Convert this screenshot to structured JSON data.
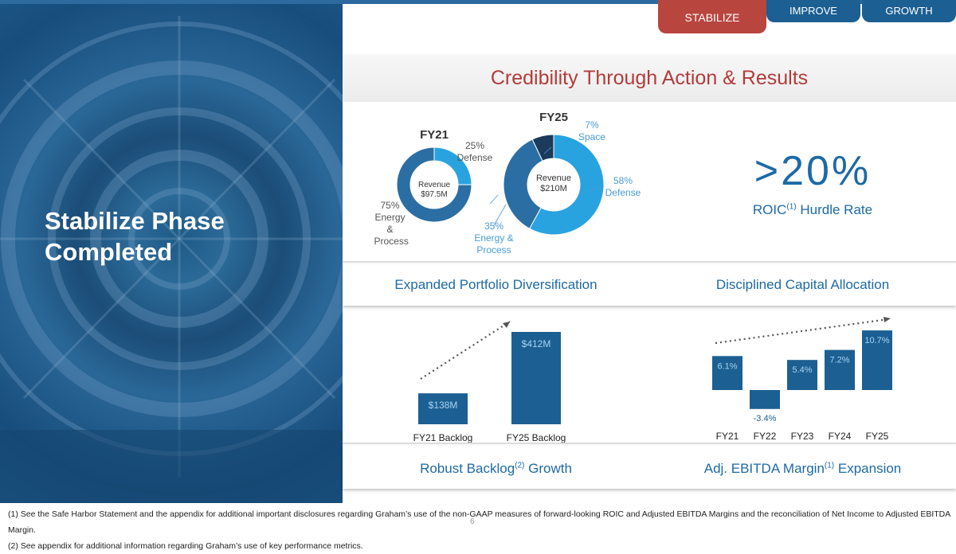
{
  "tabs": [
    {
      "label": "STABILIZE",
      "active": true
    },
    {
      "label": "IMPROVE",
      "active": false
    },
    {
      "label": "GROWTH",
      "active": false
    }
  ],
  "phase_title": "Stabilize Phase Completed",
  "main_title": "Credibility Through Action & Results",
  "colors": {
    "accent_red": "#b23c3c",
    "brand_blue": "#1d6aa5",
    "dark_blue": "#1c5f92",
    "light_blue": "#29a3e0",
    "navy": "#1b3a5c"
  },
  "roic": {
    "value": ">20%",
    "label": "ROIC",
    "sup": "(1)",
    "suffix": "Hurdle Rate"
  },
  "sections": {
    "portfolio": "Expanded Portfolio Diversification",
    "capital": "Disciplined Capital Allocation",
    "backlog": {
      "text": "Robust Backlog",
      "sup": "(2)",
      "suffix": "Growth"
    },
    "ebitda": {
      "text": "Adj. EBITDA Margin",
      "sup": "(1)",
      "suffix": "Expansion"
    }
  },
  "chart_data": [
    {
      "type": "pie",
      "title": "FY21",
      "center_label": [
        "Revenue",
        "$97.5M"
      ],
      "slices": [
        {
          "label": "Defense",
          "value": 25,
          "display": "25%",
          "color": "#29a3e0"
        },
        {
          "label": "Energy & Process",
          "value": 75,
          "display": "75%",
          "color": "#2b6ea4"
        }
      ]
    },
    {
      "type": "pie",
      "title": "FY25",
      "center_label": [
        "Revenue",
        "$210M"
      ],
      "slices": [
        {
          "label": "Defense",
          "value": 58,
          "display": "58%",
          "color": "#29a3e0"
        },
        {
          "label": "Energy & Process",
          "value": 35,
          "display": "35%",
          "color": "#2b6ea4"
        },
        {
          "label": "Space",
          "value": 7,
          "display": "7%",
          "color": "#1b3a5c"
        }
      ]
    },
    {
      "type": "bar",
      "categories": [
        "FY21 Backlog",
        "FY25 Backlog"
      ],
      "values": [
        138,
        412
      ],
      "labels": [
        "$138M",
        "$412M"
      ],
      "ylim": [
        0,
        412
      ]
    },
    {
      "type": "bar",
      "categories": [
        "FY21",
        "FY22",
        "FY23",
        "FY24",
        "FY25"
      ],
      "values": [
        6.1,
        -3.4,
        5.4,
        7.2,
        10.7
      ],
      "labels": [
        "6.1%",
        "-3.4%",
        "5.4%",
        "7.2%",
        "10.7%"
      ]
    }
  ],
  "footnotes": [
    "(1) See the Safe Harbor Statement and the appendix for additional important disclosures regarding Graham’s use of the non-GAAP measures of forward-looking ROIC and Adjusted EBITDA Margins and the reconciliation of Net Income to Adjusted EBITDA Margin.",
    "(2) See appendix for additional information regarding Graham’s use of key performance metrics."
  ],
  "page_number": "6"
}
